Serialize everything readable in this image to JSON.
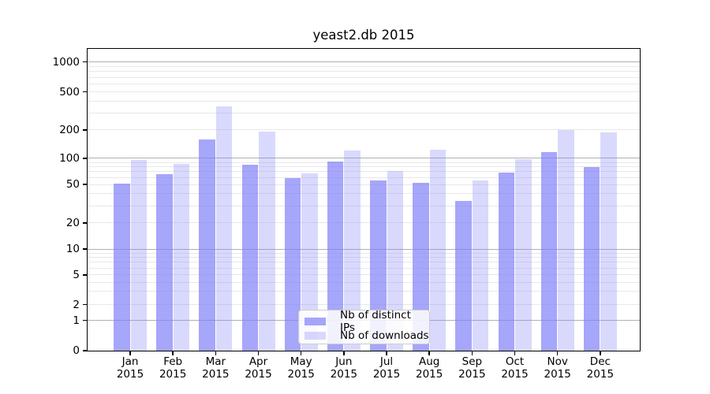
{
  "title": "yeast2.db 2015",
  "colors": {
    "bar_base": "#8080F8",
    "bar_distinct_ips": "rgba(128,128,248,0.7)",
    "bar_downloads": "rgba(128,128,248,0.3)",
    "major_grid": "#B0B0B0",
    "minor_grid": "#E8E8E8",
    "axis": "#000000"
  },
  "y_axis": {
    "tick_labels": [
      "0",
      "1",
      "2",
      "5",
      "10",
      "20",
      "50",
      "100",
      "200",
      "500",
      "1000"
    ]
  },
  "legend": {
    "items": [
      "Nb of distinct IPs",
      "Nb of downloads"
    ]
  },
  "chart_data": {
    "type": "bar",
    "title": "yeast2.db 2015",
    "categories": [
      "Jan 2015",
      "Feb 2015",
      "Mar 2015",
      "Apr 2015",
      "May 2015",
      "Jun 2015",
      "Jul 2015",
      "Aug 2015",
      "Sep 2015",
      "Oct 2015",
      "Nov 2015",
      "Dec 2015"
    ],
    "series": [
      {
        "name": "Nb of distinct IPs",
        "values": [
          51,
          66,
          160,
          85,
          59,
          92,
          55,
          52,
          34,
          68,
          116,
          80
        ]
      },
      {
        "name": "Nb of downloads",
        "values": [
          96,
          86,
          350,
          194,
          67,
          121,
          71,
          124,
          55,
          98,
          200,
          188
        ]
      }
    ],
    "yscale": "symlog",
    "y_ticks": [
      0,
      1,
      2,
      5,
      10,
      20,
      50,
      100,
      200,
      500,
      1000
    ],
    "ylim": [
      0,
      1200
    ],
    "xlabel": "",
    "ylabel": "",
    "grid": true,
    "legend_position": "lower center"
  }
}
